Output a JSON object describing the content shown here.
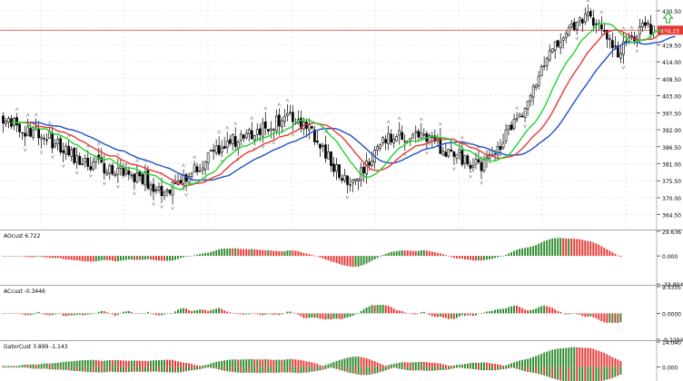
{
  "main": {
    "price_line": {
      "value": 424.23,
      "label": "424.23",
      "color": "#e53935"
    },
    "y_ticks": [
      {
        "v": 430.5,
        "label": "430.50"
      },
      {
        "v": 425.0,
        "label": ""
      },
      {
        "v": 419.5,
        "label": "419.50"
      },
      {
        "v": 414.0,
        "label": "414.00"
      },
      {
        "v": 408.5,
        "label": "408.50"
      },
      {
        "v": 403.0,
        "label": "403.00"
      },
      {
        "v": 397.5,
        "label": "397.50"
      },
      {
        "v": 392.0,
        "label": "392.00"
      },
      {
        "v": 386.5,
        "label": "386.50"
      },
      {
        "v": 381.0,
        "label": "381.00"
      },
      {
        "v": 375.5,
        "label": "375.50"
      },
      {
        "v": 370.0,
        "label": "370.00"
      },
      {
        "v": 364.5,
        "label": "364.50"
      }
    ],
    "ylim": [
      360,
      434
    ]
  },
  "panels": [
    {
      "id": "ao",
      "label": "AOcust 6.722",
      "ticks": [
        {
          "label": "29.636",
          "v": 29.636
        },
        {
          "label": "0.000",
          "v": 0
        },
        {
          "label": "-33.804",
          "v": -33.804
        }
      ],
      "ylim": [
        -33.804,
        29.636
      ],
      "colors": {
        "up": "#2e8b2e",
        "down": "#e53935"
      }
    },
    {
      "id": "ac",
      "label": "ACcust -0.3446",
      "ticks": [
        {
          "label": "9.5335",
          "v": 9.5335
        },
        {
          "label": "0.0000",
          "v": 0
        },
        {
          "label": "-9.2294",
          "v": -9.2294
        }
      ],
      "ylim": [
        -9.2294,
        9.5335
      ],
      "colors": {
        "up": "#2e8b2e",
        "down": "#e53935"
      }
    },
    {
      "id": "gator",
      "label": "GatorCust 3.899 -1.143",
      "ticks": [
        {
          "label": "14.040",
          "v": 14.04
        },
        {
          "label": "0.000",
          "v": 0
        }
      ],
      "ylim": [
        -8,
        14.04
      ],
      "colors": {
        "up": "#2e8b2e",
        "down": "#e53935"
      }
    }
  ],
  "colors": {
    "jaw": "#1f4fc8",
    "teeth": "#e53935",
    "lips": "#22d22e",
    "candle": "#000000",
    "grid": "#cfd6dc",
    "signal": "#22aa22"
  }
}
